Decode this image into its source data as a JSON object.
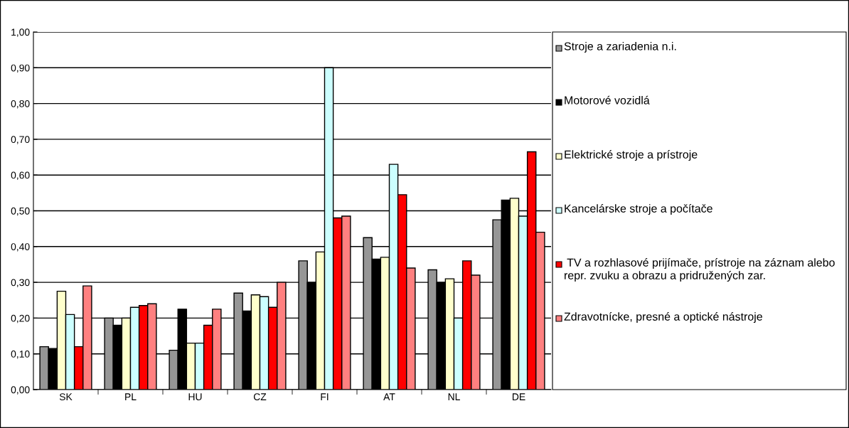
{
  "chart_data": {
    "type": "bar",
    "categories": [
      "SK",
      "PL",
      "HU",
      "CZ",
      "FI",
      "AT",
      "NL",
      "DE"
    ],
    "series": [
      {
        "name": "Stroje a zariadenia n.i.",
        "color": "#969696",
        "values": [
          0.12,
          0.2,
          0.11,
          0.27,
          0.36,
          0.425,
          0.335,
          0.475
        ]
      },
      {
        "name": "Motorové vozidlá",
        "color": "#000000",
        "values": [
          0.115,
          0.18,
          0.225,
          0.22,
          0.3,
          0.365,
          0.3,
          0.53
        ]
      },
      {
        "name": "Elektrické stroje a prístroje",
        "color": "#ffffcc",
        "values": [
          0.275,
          0.2,
          0.13,
          0.265,
          0.385,
          0.37,
          0.31,
          0.535
        ]
      },
      {
        "name": "Kancelárske stroje a počítače",
        "color": "#ccffff",
        "values": [
          0.21,
          0.23,
          0.13,
          0.26,
          0.9,
          0.63,
          0.2,
          0.485
        ]
      },
      {
        "name": " TV a rozhlasové prijímače, prístroje na záznam alebo repr. zvuku a obrazu a pridružených zar.",
        "color": "#ff0000",
        "values": [
          0.12,
          0.235,
          0.18,
          0.23,
          0.48,
          0.545,
          0.36,
          0.665
        ]
      },
      {
        "name": "Zdravotnícke, presné a optické nástroje",
        "color": "#ff8080",
        "values": [
          0.29,
          0.24,
          0.225,
          0.3,
          0.485,
          0.34,
          0.32,
          0.44
        ]
      }
    ],
    "ylim": [
      0,
      1.0
    ],
    "yticks": [
      {
        "value": 0,
        "label": "0,00"
      },
      {
        "value": 0.1,
        "label": "0,10"
      },
      {
        "value": 0.2,
        "label": "0,20"
      },
      {
        "value": 0.3,
        "label": "0,30"
      },
      {
        "value": 0.4,
        "label": "0,40"
      },
      {
        "value": 0.5,
        "label": "0,50"
      },
      {
        "value": 0.6,
        "label": "0,60"
      },
      {
        "value": 0.7,
        "label": "0,70"
      },
      {
        "value": 0.8,
        "label": "0,80"
      },
      {
        "value": 0.9,
        "label": "0,90"
      },
      {
        "value": 1.0,
        "label": "1,00"
      }
    ],
    "grid": "y",
    "legend": "right"
  }
}
